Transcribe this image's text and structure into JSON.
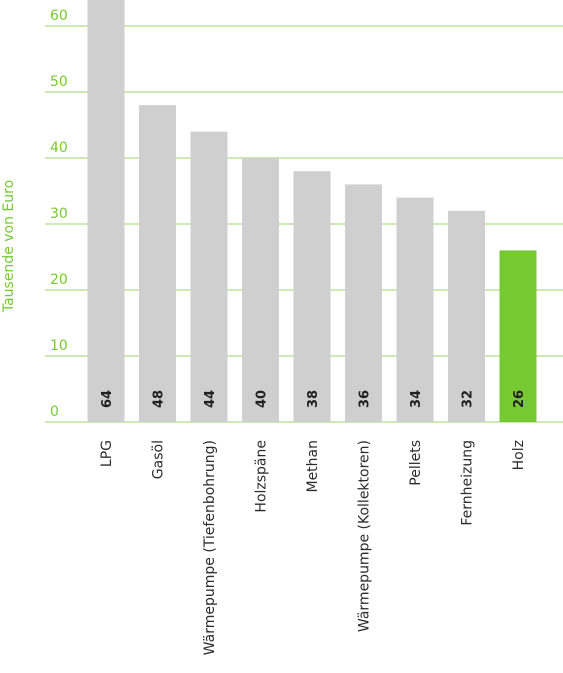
{
  "chart_data": {
    "type": "bar",
    "ylabel": "Tausende von Euro",
    "ylim": [
      0,
      66
    ],
    "yticks": [
      0,
      10,
      20,
      30,
      40,
      50,
      60
    ],
    "grid": true,
    "categories": [
      "LPG",
      "Gasöl",
      "Wärmepumpe (Tiefenbohrung)",
      "Holzspäne",
      "Methan",
      "Wärmepumpe (Kollektoren)",
      "Pellets",
      "Fernheizung",
      "Holz"
    ],
    "values": [
      64,
      48,
      44,
      40,
      38,
      36,
      34,
      32,
      26
    ],
    "highlight_index": 8,
    "colors": {
      "bar": "#cfcfcf",
      "highlight": "#76c933",
      "axis_text": "#76c933",
      "gridline": "#9fd36e"
    }
  }
}
